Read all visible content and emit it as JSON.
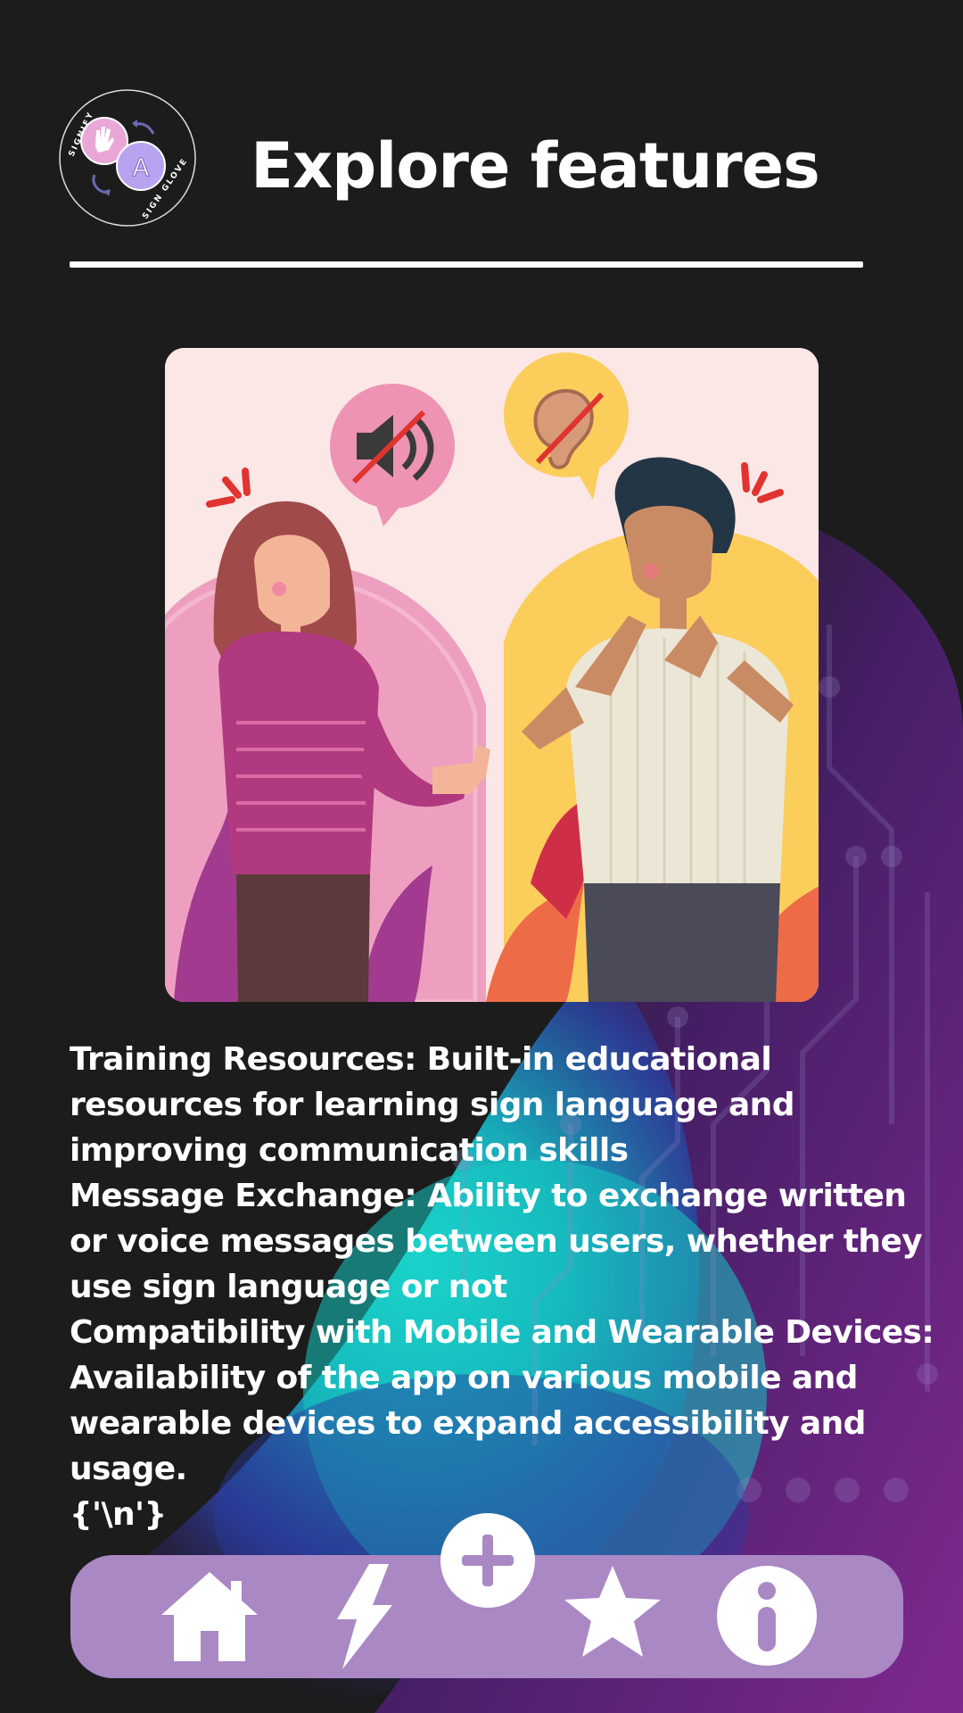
{
  "header": {
    "title": "Explore features",
    "logo": {
      "top_text": "SIGNIFY",
      "bottom_text": "SIGN GLOVE",
      "letter": "A"
    }
  },
  "illustration": {
    "icons": [
      "muted-speaker-icon",
      "crossed-ear-icon"
    ]
  },
  "features": [
    "Training Resources: Built-in educational resources for learning sign language and improving communication skills",
    "Message Exchange: Ability to exchange written or voice messages between users, whether they use sign language or not",
    "Compatibility with Mobile and Wearable Devices: Availability of the app on various mobile and wearable devices to expand accessibility and usage.",
    "{'\\n'}"
  ],
  "nav": {
    "items": [
      "home-icon",
      "lightning-icon",
      "star-icon",
      "info-icon"
    ],
    "center_button": "plus-icon"
  },
  "colors": {
    "background": "#1c1c1c",
    "nav_bar": "#a988c4",
    "accent_teal": "#19d3c9",
    "accent_purple": "#7a2aa6",
    "text": "#ffffff"
  }
}
